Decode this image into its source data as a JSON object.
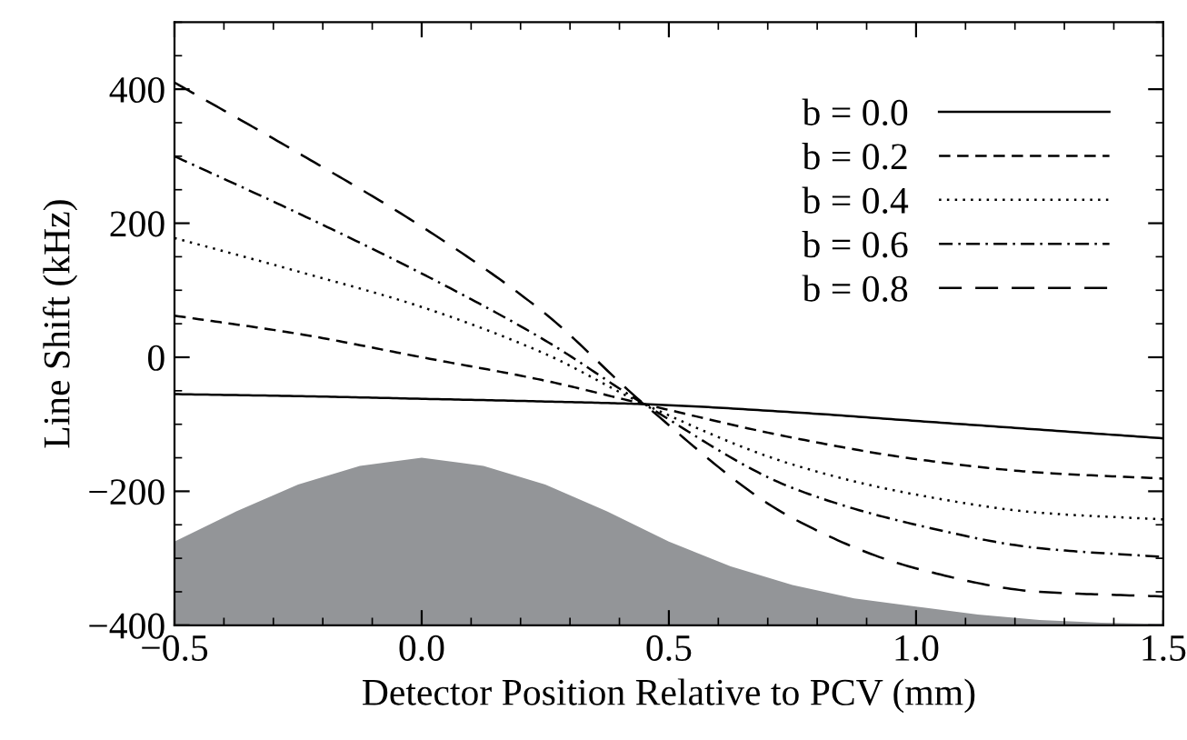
{
  "chart_data": {
    "type": "line",
    "xlabel": "Detector Position Relative to PCV (mm)",
    "ylabel": "Line Shift (kHz)",
    "xlim": [
      -0.5,
      1.5
    ],
    "ylim": [
      -400,
      500
    ],
    "xticks": [
      {
        "value": -0.5,
        "label": "−0.5"
      },
      {
        "value": 0,
        "label": "0.0"
      },
      0.5,
      {
        "value": 1,
        "label": "1.0"
      },
      1.5
    ],
    "yticks": [
      {
        "value": -400,
        "label": "−400"
      },
      {
        "value": -200,
        "label": "−200"
      },
      0,
      200,
      400
    ],
    "grid": false,
    "legend": "top right",
    "marker": "none",
    "series": [
      {
        "type": "area",
        "color": "#939598",
        "x": [
          -0.5,
          -0.375,
          -0.25,
          -0.125,
          0,
          0.125,
          0.25,
          0.375,
          0.5,
          0.625,
          0.75,
          0.875,
          1.0,
          1.125,
          1.25,
          1.375,
          1.5
        ],
        "values": [
          -275,
          -230,
          -190,
          -162,
          -150,
          -162,
          -190,
          -230,
          -275,
          -312,
          -340,
          -360,
          -372,
          -384,
          -392,
          -396,
          -398
        ]
      },
      {
        "name": "b = 0.0",
        "color": "#000000",
        "line_style": "solid",
        "x": [
          -0.5,
          -0.25,
          0,
          0.25,
          0.45,
          0.75,
          1.0,
          1.25,
          1.5
        ],
        "values": [
          -55,
          -58,
          -62,
          -66,
          -70,
          -82,
          -95,
          -108,
          -121
        ]
      },
      {
        "name": "b = 0.2",
        "color": "#000000",
        "line_style": "dashed",
        "x": [
          -0.5,
          -0.25,
          0,
          0.25,
          0.45,
          0.75,
          1.0,
          1.25,
          1.5
        ],
        "values": [
          62,
          35,
          0,
          -35,
          -70,
          -120,
          -152,
          -172,
          -181
        ]
      },
      {
        "name": "b = 0.4",
        "color": "#000000",
        "line_style": "dotted",
        "x": [
          -0.5,
          -0.25,
          0,
          0.25,
          0.45,
          0.75,
          1.0,
          1.25,
          1.5
        ],
        "values": [
          178,
          128,
          75,
          5,
          -70,
          -160,
          -205,
          -232,
          -242
        ]
      },
      {
        "name": "b = 0.6",
        "color": "#000000",
        "line_style": "dashdot",
        "x": [
          -0.5,
          -0.25,
          0,
          0.25,
          0.45,
          0.75,
          1.0,
          1.25,
          1.5
        ],
        "values": [
          300,
          215,
          125,
          25,
          -70,
          -195,
          -250,
          -285,
          -298
        ]
      },
      {
        "name": "b = 0.8",
        "color": "#000000",
        "line_style": "longdash",
        "x": [
          -0.5,
          -0.25,
          0,
          0.25,
          0.45,
          0.75,
          1.0,
          1.25,
          1.5
        ],
        "values": [
          410,
          305,
          195,
          65,
          -70,
          -240,
          -315,
          -350,
          -357
        ]
      }
    ]
  }
}
